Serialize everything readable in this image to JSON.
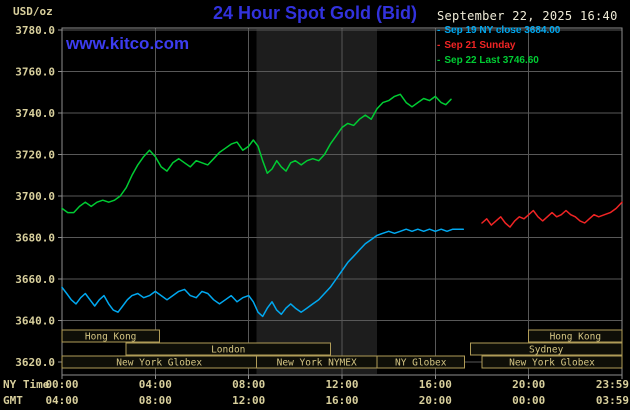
{
  "chart_data": {
    "type": "line",
    "title": "24 Hour Spot Gold (Bid)",
    "units": "USD/oz",
    "timestamp": "September 22, 2025 16:40",
    "watermark": "www.kitco.com",
    "legend_marker": "-",
    "x_axis_labels": [
      "NY Time",
      "GMT"
    ],
    "ylim": [
      3620,
      3780
    ],
    "yticks": [
      3620,
      3640,
      3660,
      3680,
      3700,
      3720,
      3740,
      3760,
      3780
    ],
    "xticks": [
      {
        "t": 0,
        "ny": "00:00",
        "gmt": "04:00"
      },
      {
        "t": 4,
        "ny": "04:00",
        "gmt": "08:00"
      },
      {
        "t": 8,
        "ny": "08:00",
        "gmt": "12:00"
      },
      {
        "t": 12,
        "ny": "12:00",
        "gmt": "16:00"
      },
      {
        "t": 16,
        "ny": "16:00",
        "gmt": "20:00"
      },
      {
        "t": 20,
        "ny": "20:00",
        "gmt": "00:00"
      },
      {
        "t": 24,
        "ny": "23:59",
        "gmt": "03:59"
      }
    ],
    "band": {
      "start": 8.33,
      "end": 13.5
    },
    "sessions": [
      {
        "row": 0,
        "start": 0,
        "end": 4.17,
        "label": "Hong Kong"
      },
      {
        "row": 0,
        "start": 20,
        "end": 24,
        "label": "Hong Kong"
      },
      {
        "row": 1,
        "start": 2.75,
        "end": 11.5,
        "label": "London"
      },
      {
        "row": 1,
        "start": 17.5,
        "end": 24,
        "label": "Sydney"
      },
      {
        "row": 2,
        "start": 0,
        "end": 8.33,
        "label": "New York Globex"
      },
      {
        "row": 2,
        "start": 8.33,
        "end": 13.5,
        "label": "New York NYMEX"
      },
      {
        "row": 2,
        "start": 13.5,
        "end": 17.25,
        "label": "NY Globex"
      },
      {
        "row": 2,
        "start": 18,
        "end": 24,
        "label": "New York Globex"
      }
    ],
    "series": [
      {
        "name": "Sep 19 NY close 3684.00",
        "close": 3684.0,
        "color": "#00a8f0",
        "points": [
          [
            0,
            3656
          ],
          [
            0.2,
            3653
          ],
          [
            0.4,
            3650
          ],
          [
            0.6,
            3648
          ],
          [
            0.8,
            3651
          ],
          [
            1,
            3653
          ],
          [
            1.2,
            3650
          ],
          [
            1.4,
            3647
          ],
          [
            1.6,
            3650
          ],
          [
            1.8,
            3652
          ],
          [
            2,
            3648
          ],
          [
            2.2,
            3645
          ],
          [
            2.4,
            3644
          ],
          [
            2.6,
            3647
          ],
          [
            2.8,
            3650
          ],
          [
            3,
            3652
          ],
          [
            3.25,
            3653
          ],
          [
            3.5,
            3651
          ],
          [
            3.75,
            3652
          ],
          [
            4,
            3654
          ],
          [
            4.25,
            3652
          ],
          [
            4.5,
            3650
          ],
          [
            4.75,
            3652
          ],
          [
            5,
            3654
          ],
          [
            5.25,
            3655
          ],
          [
            5.5,
            3652
          ],
          [
            5.75,
            3651
          ],
          [
            6,
            3654
          ],
          [
            6.25,
            3653
          ],
          [
            6.5,
            3650
          ],
          [
            6.75,
            3648
          ],
          [
            7,
            3650
          ],
          [
            7.25,
            3652
          ],
          [
            7.5,
            3649
          ],
          [
            7.75,
            3651
          ],
          [
            8,
            3652
          ],
          [
            8.2,
            3649
          ],
          [
            8.4,
            3644
          ],
          [
            8.6,
            3642
          ],
          [
            8.8,
            3646
          ],
          [
            9,
            3649
          ],
          [
            9.2,
            3645
          ],
          [
            9.4,
            3643
          ],
          [
            9.6,
            3646
          ],
          [
            9.8,
            3648
          ],
          [
            10,
            3646
          ],
          [
            10.25,
            3644
          ],
          [
            10.5,
            3646
          ],
          [
            10.75,
            3648
          ],
          [
            11,
            3650
          ],
          [
            11.25,
            3653
          ],
          [
            11.5,
            3656
          ],
          [
            11.75,
            3660
          ],
          [
            12,
            3664
          ],
          [
            12.25,
            3668
          ],
          [
            12.5,
            3671
          ],
          [
            12.75,
            3674
          ],
          [
            13,
            3677
          ],
          [
            13.25,
            3679
          ],
          [
            13.5,
            3681
          ],
          [
            13.75,
            3682
          ],
          [
            14,
            3683
          ],
          [
            14.25,
            3682
          ],
          [
            14.5,
            3683
          ],
          [
            14.75,
            3684
          ],
          [
            15,
            3683
          ],
          [
            15.25,
            3684
          ],
          [
            15.5,
            3683
          ],
          [
            15.75,
            3684
          ],
          [
            16,
            3683
          ],
          [
            16.25,
            3684
          ],
          [
            16.5,
            3683
          ],
          [
            16.75,
            3684
          ],
          [
            17,
            3684
          ],
          [
            17.2,
            3684
          ]
        ]
      },
      {
        "name": "Sep 21 Sunday",
        "color": "#f02424",
        "points": [
          [
            18,
            3687
          ],
          [
            18.2,
            3689
          ],
          [
            18.4,
            3686
          ],
          [
            18.6,
            3688
          ],
          [
            18.8,
            3690
          ],
          [
            19,
            3687
          ],
          [
            19.2,
            3685
          ],
          [
            19.4,
            3688
          ],
          [
            19.6,
            3690
          ],
          [
            19.8,
            3689
          ],
          [
            20,
            3691
          ],
          [
            20.2,
            3693
          ],
          [
            20.4,
            3690
          ],
          [
            20.6,
            3688
          ],
          [
            20.8,
            3690
          ],
          [
            21,
            3692
          ],
          [
            21.2,
            3690
          ],
          [
            21.4,
            3691
          ],
          [
            21.6,
            3693
          ],
          [
            21.8,
            3691
          ],
          [
            22,
            3690
          ],
          [
            22.2,
            3688
          ],
          [
            22.4,
            3687
          ],
          [
            22.6,
            3689
          ],
          [
            22.8,
            3691
          ],
          [
            23,
            3690
          ],
          [
            23.25,
            3691
          ],
          [
            23.5,
            3692
          ],
          [
            23.75,
            3694
          ],
          [
            24,
            3697
          ]
        ]
      },
      {
        "name": "Sep 22 Last 3746.60",
        "last": 3746.6,
        "color": "#00cc33",
        "points": [
          [
            0,
            3694
          ],
          [
            0.25,
            3692
          ],
          [
            0.5,
            3692
          ],
          [
            0.75,
            3695
          ],
          [
            1,
            3697
          ],
          [
            1.25,
            3695
          ],
          [
            1.5,
            3697
          ],
          [
            1.75,
            3698
          ],
          [
            2,
            3697
          ],
          [
            2.25,
            3698
          ],
          [
            2.5,
            3700
          ],
          [
            2.75,
            3704
          ],
          [
            3,
            3710
          ],
          [
            3.25,
            3715
          ],
          [
            3.5,
            3719
          ],
          [
            3.75,
            3722
          ],
          [
            4,
            3719
          ],
          [
            4.25,
            3714
          ],
          [
            4.5,
            3712
          ],
          [
            4.75,
            3716
          ],
          [
            5,
            3718
          ],
          [
            5.25,
            3716
          ],
          [
            5.5,
            3714
          ],
          [
            5.75,
            3717
          ],
          [
            6,
            3716
          ],
          [
            6.25,
            3715
          ],
          [
            6.5,
            3718
          ],
          [
            6.75,
            3721
          ],
          [
            7,
            3723
          ],
          [
            7.25,
            3725
          ],
          [
            7.5,
            3726
          ],
          [
            7.75,
            3722
          ],
          [
            8,
            3724
          ],
          [
            8.2,
            3727
          ],
          [
            8.4,
            3724
          ],
          [
            8.6,
            3717
          ],
          [
            8.8,
            3711
          ],
          [
            9,
            3713
          ],
          [
            9.2,
            3717
          ],
          [
            9.4,
            3714
          ],
          [
            9.6,
            3712
          ],
          [
            9.8,
            3716
          ],
          [
            10,
            3717
          ],
          [
            10.25,
            3715
          ],
          [
            10.5,
            3717
          ],
          [
            10.75,
            3718
          ],
          [
            11,
            3717
          ],
          [
            11.25,
            3720
          ],
          [
            11.5,
            3725
          ],
          [
            11.75,
            3729
          ],
          [
            12,
            3733
          ],
          [
            12.25,
            3735
          ],
          [
            12.5,
            3734
          ],
          [
            12.75,
            3737
          ],
          [
            13,
            3739
          ],
          [
            13.25,
            3737
          ],
          [
            13.5,
            3742
          ],
          [
            13.75,
            3745
          ],
          [
            14,
            3746
          ],
          [
            14.25,
            3748
          ],
          [
            14.5,
            3749
          ],
          [
            14.75,
            3745
          ],
          [
            15,
            3743
          ],
          [
            15.25,
            3745
          ],
          [
            15.5,
            3747
          ],
          [
            15.75,
            3746
          ],
          [
            16,
            3748
          ],
          [
            16.25,
            3745
          ],
          [
            16.45,
            3744
          ],
          [
            16.67,
            3746.6
          ]
        ]
      }
    ],
    "colors": {
      "background": "#000000",
      "title": "#3232dd",
      "watermark": "#3c3cf0",
      "date": "#f0ecd8",
      "axis": "#d8cf9c",
      "grid": "#585858",
      "border": "#8e8e8e",
      "band": "#1d1d1d",
      "session_border": "#b09c58",
      "session_fill": "#0f0f08",
      "session_text": "#d4c583"
    }
  }
}
